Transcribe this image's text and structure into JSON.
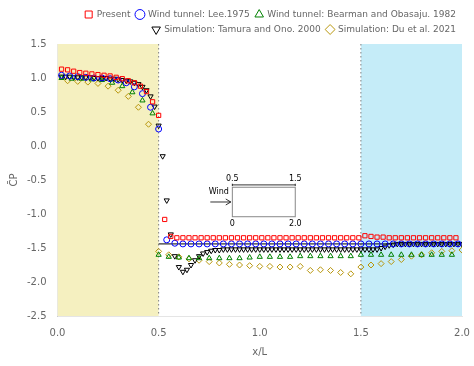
{
  "chart_data": {
    "type": "scatter",
    "xlabel": "x/L",
    "ylabel": "C̄P",
    "xlim": [
      0.0,
      2.0
    ],
    "ylim": [
      -2.5,
      1.5
    ],
    "xticks": [
      {
        "value": 0.0,
        "label": "0.0"
      },
      0.5,
      {
        "value": 1.0,
        "label": "1.0"
      },
      1.5,
      {
        "value": 2.0,
        "label": "2.0"
      }
    ],
    "yticks": [
      -2.5,
      {
        "value": -2.0,
        "label": "-2.0"
      },
      -1.5,
      {
        "value": -1.0,
        "label": "-1.0"
      },
      -0.5,
      {
        "value": 0.0,
        "label": "0.0"
      },
      0.5,
      {
        "value": 1.0,
        "label": "1.0"
      },
      1.5
    ],
    "grid": false,
    "legend": "upper right",
    "shaded_regions": [
      {
        "from": 0.0,
        "to": 0.5,
        "color": "#f5f0c0"
      },
      {
        "from": 1.5,
        "to": 2.0,
        "color": "#c5ecf8"
      }
    ],
    "vlines": [
      {
        "x": 0.5,
        "color": "gray",
        "line_style": "dotted"
      },
      {
        "x": 1.5,
        "color": "gray",
        "line_style": "dotted"
      }
    ],
    "reference_line": {
      "x": [
        0.5,
        2.0
      ],
      "y": [
        -1.44,
        -1.44
      ],
      "color": "black",
      "line_style": "solid"
    },
    "inset": {
      "top_labels": [
        "0.5",
        "1.5"
      ],
      "bottom_labels": [
        "0",
        "2.0"
      ],
      "arrow_label": "Wind"
    },
    "series": [
      {
        "name": "Present",
        "color": "red",
        "marker": "square",
        "x": [
          0.02,
          0.05,
          0.08,
          0.11,
          0.14,
          0.17,
          0.2,
          0.23,
          0.26,
          0.29,
          0.32,
          0.35,
          0.38,
          0.41,
          0.44,
          0.47,
          0.5,
          0.53,
          0.56,
          0.59,
          0.62,
          0.65,
          0.68,
          0.71,
          0.74,
          0.77,
          0.8,
          0.83,
          0.86,
          0.89,
          0.92,
          0.95,
          0.98,
          1.01,
          1.04,
          1.07,
          1.1,
          1.13,
          1.16,
          1.19,
          1.22,
          1.25,
          1.28,
          1.31,
          1.34,
          1.37,
          1.4,
          1.43,
          1.46,
          1.49,
          1.52,
          1.55,
          1.58,
          1.61,
          1.64,
          1.67,
          1.7,
          1.73,
          1.76,
          1.79,
          1.82,
          1.85,
          1.88,
          1.91,
          1.94,
          1.97
        ],
        "values": [
          1.13,
          1.12,
          1.1,
          1.08,
          1.07,
          1.06,
          1.05,
          1.04,
          1.03,
          1.01,
          0.99,
          0.96,
          0.93,
          0.88,
          0.8,
          0.65,
          0.45,
          -1.08,
          -1.33,
          -1.35,
          -1.35,
          -1.35,
          -1.35,
          -1.35,
          -1.35,
          -1.35,
          -1.35,
          -1.35,
          -1.35,
          -1.35,
          -1.35,
          -1.35,
          -1.35,
          -1.35,
          -1.35,
          -1.35,
          -1.35,
          -1.35,
          -1.35,
          -1.35,
          -1.35,
          -1.35,
          -1.35,
          -1.35,
          -1.35,
          -1.35,
          -1.35,
          -1.35,
          -1.35,
          -1.35,
          -1.32,
          -1.33,
          -1.34,
          -1.34,
          -1.35,
          -1.35,
          -1.35,
          -1.35,
          -1.35,
          -1.35,
          -1.35,
          -1.35,
          -1.35,
          -1.35,
          -1.35,
          -1.35
        ]
      },
      {
        "name": "Wind tunnel: Lee.1975",
        "color": "blue",
        "marker": "circle",
        "x": [
          0.02,
          0.06,
          0.1,
          0.14,
          0.18,
          0.22,
          0.26,
          0.3,
          0.34,
          0.38,
          0.42,
          0.46,
          0.5,
          0.54,
          0.58,
          0.62,
          0.66,
          0.7,
          0.74,
          0.78,
          0.82,
          0.86,
          0.9,
          0.94,
          0.98,
          1.02,
          1.06,
          1.1,
          1.14,
          1.18,
          1.22,
          1.26,
          1.3,
          1.34,
          1.38,
          1.42,
          1.46,
          1.5,
          1.54,
          1.58,
          1.62,
          1.66,
          1.7,
          1.74,
          1.78,
          1.82,
          1.86,
          1.9,
          1.94,
          1.98
        ],
        "values": [
          1.04,
          1.03,
          1.02,
          1.01,
          1.0,
          1.0,
          0.99,
          0.97,
          0.93,
          0.87,
          0.77,
          0.57,
          0.25,
          -1.38,
          -1.43,
          -1.44,
          -1.44,
          -1.44,
          -1.44,
          -1.44,
          -1.44,
          -1.44,
          -1.44,
          -1.44,
          -1.44,
          -1.44,
          -1.44,
          -1.44,
          -1.44,
          -1.44,
          -1.44,
          -1.44,
          -1.44,
          -1.44,
          -1.44,
          -1.44,
          -1.44,
          -1.44,
          -1.44,
          -1.44,
          -1.44,
          -1.44,
          -1.44,
          -1.44,
          -1.44,
          -1.44,
          -1.44,
          -1.44,
          -1.44,
          -1.44
        ]
      },
      {
        "name": "Wind tunnel: Bearman and Obasaju. 1982",
        "color": "green",
        "marker": "triangle_up",
        "x": [
          0.02,
          0.07,
          0.12,
          0.17,
          0.22,
          0.27,
          0.32,
          0.37,
          0.42,
          0.47,
          0.5,
          0.55,
          0.6,
          0.65,
          0.7,
          0.75,
          0.8,
          0.85,
          0.9,
          0.95,
          1.0,
          1.05,
          1.1,
          1.15,
          1.2,
          1.25,
          1.3,
          1.35,
          1.4,
          1.45,
          1.5,
          1.55,
          1.6,
          1.65,
          1.7,
          1.75,
          1.8,
          1.85,
          1.9,
          1.95
        ],
        "values": [
          1.0,
          0.99,
          0.99,
          0.98,
          0.97,
          0.93,
          0.88,
          0.79,
          0.67,
          0.48,
          -1.6,
          -1.63,
          -1.64,
          -1.65,
          -1.65,
          -1.65,
          -1.65,
          -1.65,
          -1.65,
          -1.64,
          -1.63,
          -1.63,
          -1.63,
          -1.63,
          -1.62,
          -1.62,
          -1.62,
          -1.62,
          -1.62,
          -1.62,
          -1.6,
          -1.6,
          -1.6,
          -1.6,
          -1.6,
          -1.6,
          -1.6,
          -1.6,
          -1.6,
          -1.6
        ]
      },
      {
        "name": "Simulation: Tamura and Ono. 2000",
        "color": "black",
        "marker": "triangle_down",
        "x": [
          0.02,
          0.04,
          0.06,
          0.08,
          0.1,
          0.12,
          0.14,
          0.16,
          0.18,
          0.2,
          0.22,
          0.24,
          0.26,
          0.28,
          0.3,
          0.32,
          0.34,
          0.36,
          0.38,
          0.4,
          0.42,
          0.44,
          0.46,
          0.48,
          0.5,
          0.52,
          0.54,
          0.56,
          0.58,
          0.6,
          0.62,
          0.64,
          0.66,
          0.68,
          0.7,
          0.72,
          0.74,
          0.76,
          0.78,
          0.8,
          0.82,
          0.84,
          0.86,
          0.88,
          0.9,
          0.92,
          0.94,
          0.96,
          0.98,
          1.0,
          1.02,
          1.04,
          1.06,
          1.08,
          1.1,
          1.12,
          1.14,
          1.16,
          1.18,
          1.2,
          1.22,
          1.24,
          1.26,
          1.28,
          1.3,
          1.32,
          1.34,
          1.36,
          1.38,
          1.4,
          1.42,
          1.44,
          1.46,
          1.48,
          1.5,
          1.52,
          1.54,
          1.56,
          1.58,
          1.6,
          1.62,
          1.64,
          1.66,
          1.68,
          1.7,
          1.72,
          1.74,
          1.76,
          1.78,
          1.8,
          1.82,
          1.84,
          1.86,
          1.88,
          1.9,
          1.92,
          1.94,
          1.96,
          1.98,
          2.0
        ],
        "values": [
          1.02,
          1.02,
          1.02,
          1.01,
          1.01,
          1.01,
          1.01,
          1.01,
          1.0,
          1.0,
          1.0,
          1.0,
          0.99,
          0.99,
          0.98,
          0.97,
          0.96,
          0.95,
          0.93,
          0.91,
          0.87,
          0.82,
          0.73,
          0.58,
          0.3,
          -0.15,
          -0.8,
          -1.3,
          -1.62,
          -1.78,
          -1.85,
          -1.82,
          -1.75,
          -1.68,
          -1.62,
          -1.58,
          -1.56,
          -1.54,
          -1.53,
          -1.53,
          -1.52,
          -1.52,
          -1.52,
          -1.52,
          -1.52,
          -1.52,
          -1.52,
          -1.52,
          -1.52,
          -1.52,
          -1.52,
          -1.52,
          -1.52,
          -1.52,
          -1.52,
          -1.52,
          -1.52,
          -1.52,
          -1.52,
          -1.52,
          -1.52,
          -1.52,
          -1.52,
          -1.52,
          -1.52,
          -1.52,
          -1.52,
          -1.52,
          -1.52,
          -1.52,
          -1.52,
          -1.52,
          -1.52,
          -1.52,
          -1.52,
          -1.52,
          -1.52,
          -1.52,
          -1.52,
          -1.5,
          -1.48,
          -1.46,
          -1.45,
          -1.44,
          -1.44,
          -1.44,
          -1.44,
          -1.44,
          -1.44,
          -1.44,
          -1.44,
          -1.44,
          -1.44,
          -1.44,
          -1.44,
          -1.44,
          -1.44,
          -1.44,
          -1.44,
          -1.44
        ]
      },
      {
        "name": "Simulation: Du et al. 2021",
        "color": "#b8960c",
        "marker": "diamond",
        "x": [
          0.05,
          0.1,
          0.15,
          0.2,
          0.25,
          0.3,
          0.35,
          0.4,
          0.45,
          0.5,
          0.55,
          0.6,
          0.65,
          0.7,
          0.75,
          0.8,
          0.85,
          0.9,
          0.95,
          1.0,
          1.05,
          1.1,
          1.15,
          1.2,
          1.25,
          1.3,
          1.35,
          1.4,
          1.45,
          1.5,
          1.55,
          1.6,
          1.65,
          1.7,
          1.75,
          1.8,
          1.85,
          1.9,
          1.95,
          2.0
        ],
        "values": [
          0.96,
          0.95,
          0.94,
          0.92,
          0.88,
          0.82,
          0.73,
          0.57,
          0.32,
          -1.55,
          -1.6,
          -1.63,
          -1.66,
          -1.68,
          -1.7,
          -1.72,
          -1.74,
          -1.75,
          -1.76,
          -1.77,
          -1.77,
          -1.78,
          -1.78,
          -1.77,
          -1.83,
          -1.82,
          -1.83,
          -1.86,
          -1.88,
          -1.78,
          -1.75,
          -1.73,
          -1.7,
          -1.67,
          -1.62,
          -1.6,
          -1.57,
          -1.55,
          -1.54,
          -1.53
        ]
      }
    ]
  }
}
